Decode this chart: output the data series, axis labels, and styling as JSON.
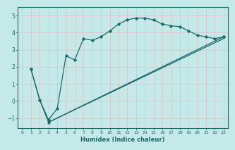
{
  "xlabel": "Humidex (Indice chaleur)",
  "xlim": [
    -0.5,
    23.5
  ],
  "ylim": [
    -1.6,
    5.5
  ],
  "xticks": [
    0,
    1,
    2,
    3,
    4,
    5,
    6,
    7,
    8,
    9,
    10,
    11,
    12,
    13,
    14,
    15,
    16,
    17,
    18,
    19,
    20,
    21,
    22,
    23
  ],
  "yticks": [
    -1,
    0,
    1,
    2,
    3,
    4,
    5
  ],
  "bg_color": "#c5e8e8",
  "line_color": "#1a6b6b",
  "grid_color": "#b8d8d8",
  "line1_x": [
    1,
    2,
    3,
    4,
    5,
    6,
    7,
    8,
    9,
    10,
    11,
    12,
    13,
    14,
    15,
    16,
    17,
    18,
    19,
    20,
    21,
    22,
    23
  ],
  "line1_y": [
    1.85,
    0.05,
    -1.1,
    -0.45,
    2.65,
    2.4,
    3.65,
    3.55,
    3.75,
    4.1,
    4.5,
    4.75,
    4.85,
    4.85,
    4.75,
    4.5,
    4.4,
    4.35,
    4.1,
    3.85,
    3.75,
    3.65,
    3.75
  ],
  "line2_x": [
    1,
    2,
    3,
    23
  ],
  "line2_y": [
    1.85,
    0.05,
    -1.25,
    3.75
  ],
  "line3_x": [
    3,
    23
  ],
  "line3_y": [
    -1.25,
    3.65
  ]
}
